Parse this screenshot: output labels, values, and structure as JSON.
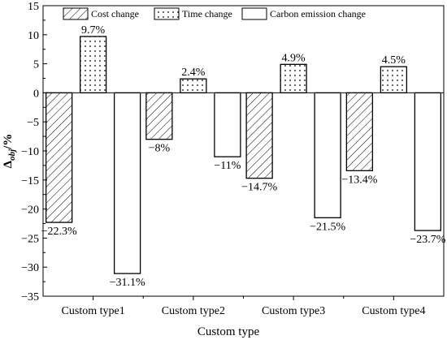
{
  "chart_data": {
    "type": "bar",
    "categories": [
      "Custom type1",
      "Custom type2",
      "Custom type3",
      "Custom type4"
    ],
    "series": [
      {
        "name": "Cost change",
        "pattern": "hatch",
        "values": [
          -22.3,
          -8.0,
          -14.7,
          -13.4
        ]
      },
      {
        "name": "Time change",
        "pattern": "dots",
        "values": [
          9.7,
          2.4,
          4.9,
          4.5
        ]
      },
      {
        "name": "Carbon emission change",
        "pattern": "blank",
        "values": [
          -31.1,
          -11.0,
          -21.5,
          -23.7
        ]
      }
    ],
    "data_labels": [
      [
        "−22.3%",
        "−8%",
        "−14.7%",
        "−13.4%"
      ],
      [
        "9.7%",
        "2.4%",
        "4.9%",
        "4.5%"
      ],
      [
        "−31.1%",
        "−11%",
        "−21.5%",
        "−23.7%"
      ]
    ],
    "xlabel": "Custom type",
    "ylabel_main": "Δ",
    "ylabel_sub": "obj",
    "ylabel_suffix": "/%",
    "ylim": [
      -35,
      15
    ],
    "yticks": [
      15,
      10,
      5,
      0,
      -5,
      -10,
      -15,
      -20,
      -25,
      -30,
      -35
    ],
    "ytick_labels": [
      "15",
      "10",
      "5",
      "0",
      "−5",
      "−10",
      "−15",
      "−20",
      "−25",
      "−30",
      "−35"
    ],
    "legend_position": "top",
    "grid": false,
    "colors": {
      "bar_fill": "#ffffff",
      "stroke": "#000000"
    }
  }
}
